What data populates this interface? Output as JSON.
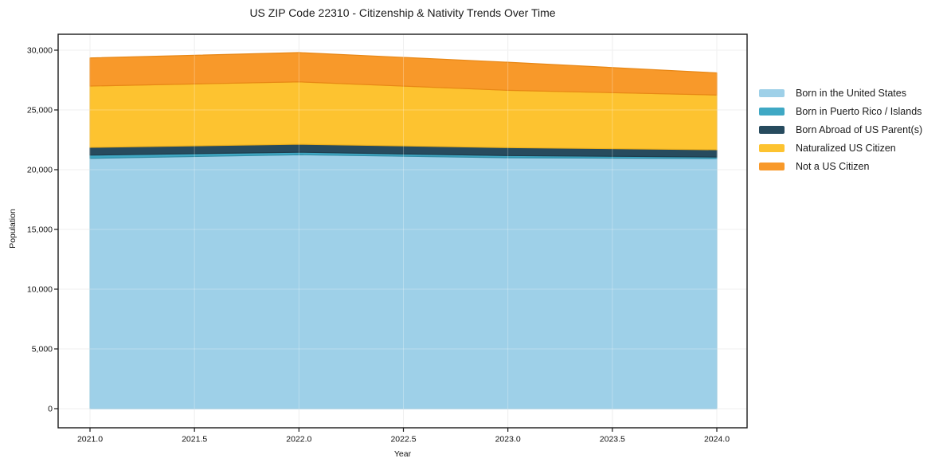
{
  "title": "US ZIP Code 22310 - Citizenship & Nativity Trends Over Time",
  "chart_data": {
    "type": "area",
    "stacked": true,
    "title": "US ZIP Code 22310 - Citizenship & Nativity Trends Over Time",
    "xlabel": "Year",
    "ylabel": "Population",
    "xlim": [
      2020.85,
      2024.15
    ],
    "ylim": [
      0,
      30000
    ],
    "grid": true,
    "legend_position": "right",
    "x": [
      2021,
      2022,
      2023,
      2024
    ],
    "x_ticks": {
      "values": [
        2021.0,
        2021.5,
        2022.0,
        2022.5,
        2023.0,
        2023.5,
        2024.0
      ],
      "labels": [
        "2021.0",
        "2021.5",
        "2022.0",
        "2022.5",
        "2023.0",
        "2023.5",
        "2024.0"
      ]
    },
    "y_ticks": {
      "values": [
        0,
        5000,
        10000,
        15000,
        20000,
        25000,
        30000
      ],
      "labels": [
        "0",
        "5,000",
        "10,000",
        "15,000",
        "20,000",
        "25,000",
        "30,000"
      ]
    },
    "series": [
      {
        "name": "Born in the United States",
        "color": "#9ed0e8",
        "edge": "#86bfd8",
        "values": [
          20950,
          21250,
          21000,
          20930
        ]
      },
      {
        "name": "Born in Puerto Rico / Islands",
        "color": "#3fa8c4",
        "edge": "#338fa8",
        "values": [
          270,
          210,
          180,
          130
        ]
      },
      {
        "name": "Born Abroad of US Parent(s)",
        "color": "#274b5e",
        "edge": "#1f3d4d",
        "values": [
          650,
          670,
          670,
          610
        ]
      },
      {
        "name": "Naturalized US Citizen",
        "color": "#fdc330",
        "edge": "#eeb01c",
        "values": [
          5130,
          5220,
          4790,
          4580
        ]
      },
      {
        "name": "Not a US Citizen",
        "color": "#f8992a",
        "edge": "#e88715",
        "values": [
          2350,
          2450,
          2350,
          1850
        ]
      }
    ],
    "totals": [
      29350,
      29800,
      28990,
      28100
    ]
  }
}
